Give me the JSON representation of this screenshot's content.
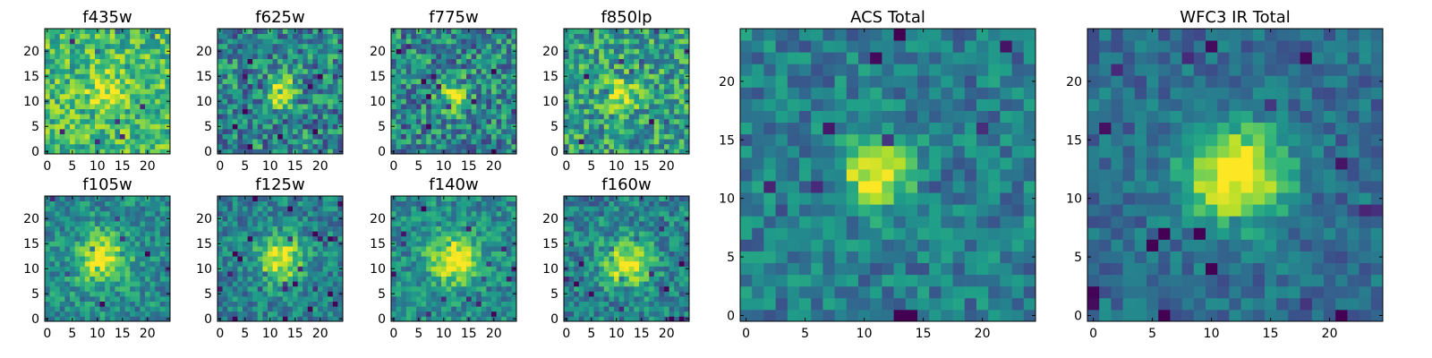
{
  "chart_data": [
    {
      "type": "heatmap",
      "title": "f435w",
      "xticks": [
        0,
        5,
        10,
        15,
        20
      ],
      "yticks": [
        0,
        5,
        10,
        15,
        20
      ],
      "xlim": [
        0,
        24
      ],
      "ylim": [
        0,
        24
      ],
      "grid_size": 24,
      "peak": [
        12,
        12
      ],
      "peak_strength": 0.22,
      "peak_width": 2.6,
      "noise": 0.3,
      "base": 0.68,
      "seed": 11,
      "colormap": "viridis"
    },
    {
      "type": "heatmap",
      "title": "f625w",
      "xticks": [
        0,
        5,
        10,
        15,
        20
      ],
      "yticks": [
        0,
        5,
        10,
        15,
        20
      ],
      "xlim": [
        0,
        24
      ],
      "ylim": [
        0,
        24
      ],
      "grid_size": 24,
      "peak": [
        12,
        12
      ],
      "peak_strength": 0.45,
      "peak_width": 2.0,
      "noise": 0.36,
      "base": 0.46,
      "seed": 23,
      "colormap": "viridis"
    },
    {
      "type": "heatmap",
      "title": "f775w",
      "xticks": [
        0,
        5,
        10,
        15,
        20
      ],
      "yticks": [
        0,
        5,
        10,
        15,
        20
      ],
      "xlim": [
        0,
        24
      ],
      "ylim": [
        0,
        24
      ],
      "grid_size": 24,
      "peak": [
        12,
        11
      ],
      "peak_strength": 0.42,
      "peak_width": 2.0,
      "noise": 0.36,
      "base": 0.46,
      "seed": 37,
      "colormap": "viridis"
    },
    {
      "type": "heatmap",
      "title": "f850lp",
      "xticks": [
        0,
        5,
        10,
        15,
        20
      ],
      "yticks": [
        0,
        5,
        10,
        15,
        20
      ],
      "xlim": [
        0,
        24
      ],
      "ylim": [
        0,
        24
      ],
      "grid_size": 24,
      "peak": [
        11,
        11
      ],
      "peak_strength": 0.32,
      "peak_width": 2.2,
      "noise": 0.34,
      "base": 0.56,
      "seed": 41,
      "colormap": "viridis"
    },
    {
      "type": "heatmap",
      "title": "f105w",
      "xticks": [
        0,
        5,
        10,
        15,
        20
      ],
      "yticks": [
        0,
        5,
        10,
        15,
        20
      ],
      "xlim": [
        0,
        24
      ],
      "ylim": [
        0,
        24
      ],
      "grid_size": 24,
      "peak": [
        11,
        12
      ],
      "peak_strength": 0.42,
      "peak_width": 3.5,
      "noise": 0.24,
      "base": 0.48,
      "seed": 53,
      "colormap": "viridis"
    },
    {
      "type": "heatmap",
      "title": "f125w",
      "xticks": [
        0,
        5,
        10,
        15,
        20
      ],
      "yticks": [
        0,
        5,
        10,
        15,
        20
      ],
      "xlim": [
        0,
        24
      ],
      "ylim": [
        0,
        24
      ],
      "grid_size": 24,
      "peak": [
        12,
        12
      ],
      "peak_strength": 0.45,
      "peak_width": 3.2,
      "noise": 0.24,
      "base": 0.44,
      "seed": 67,
      "colormap": "viridis"
    },
    {
      "type": "heatmap",
      "title": "f140w",
      "xticks": [
        0,
        5,
        10,
        15,
        20
      ],
      "yticks": [
        0,
        5,
        10,
        15,
        20
      ],
      "xlim": [
        0,
        24
      ],
      "ylim": [
        0,
        24
      ],
      "grid_size": 24,
      "peak": [
        12,
        12
      ],
      "peak_strength": 0.44,
      "peak_width": 3.4,
      "noise": 0.24,
      "base": 0.48,
      "seed": 71,
      "colormap": "viridis"
    },
    {
      "type": "heatmap",
      "title": "f160w",
      "xticks": [
        0,
        5,
        10,
        15,
        20
      ],
      "yticks": [
        0,
        5,
        10,
        15,
        20
      ],
      "xlim": [
        0,
        24
      ],
      "ylim": [
        0,
        24
      ],
      "grid_size": 24,
      "peak": [
        12,
        11
      ],
      "peak_strength": 0.45,
      "peak_width": 3.3,
      "noise": 0.26,
      "base": 0.44,
      "seed": 83,
      "colormap": "viridis"
    },
    {
      "type": "heatmap",
      "title": "ACS Total",
      "xticks": [
        0,
        5,
        10,
        15,
        20
      ],
      "yticks": [
        0,
        5,
        10,
        15,
        20
      ],
      "xlim": [
        0,
        24
      ],
      "ylim": [
        0,
        24
      ],
      "grid_size": 24,
      "peak": [
        11,
        12
      ],
      "peak_strength": 0.55,
      "peak_width": 1.9,
      "noise": 0.22,
      "base": 0.42,
      "seed": 97,
      "colormap": "viridis"
    },
    {
      "type": "heatmap",
      "title": "WFC3 IR Total",
      "xticks": [
        0,
        5,
        10,
        15,
        20
      ],
      "yticks": [
        0,
        5,
        10,
        15,
        20
      ],
      "xlim": [
        0,
        24
      ],
      "ylim": [
        0,
        24
      ],
      "grid_size": 24,
      "peak": [
        12,
        12
      ],
      "peak_strength": 0.6,
      "peak_width": 3.0,
      "noise": 0.18,
      "base": 0.36,
      "seed": 101,
      "colormap": "viridis"
    }
  ]
}
